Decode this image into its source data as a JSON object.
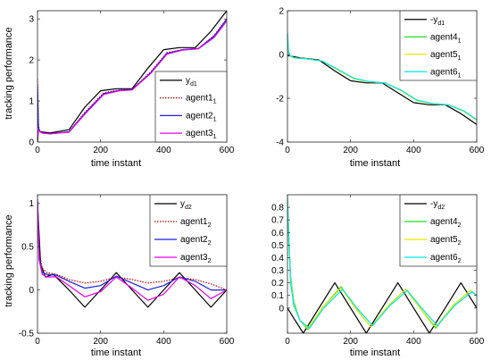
{
  "chart_data": [
    {
      "id": "tl",
      "type": "line",
      "xlabel": "time instant",
      "ylabel": "tracking performance",
      "xlim": [
        0,
        600
      ],
      "ylim": [
        0,
        3.2
      ],
      "xticks": [
        "0",
        "200",
        "400",
        "600"
      ],
      "xtick_values": [
        0,
        200,
        400,
        600
      ],
      "yticks": [
        "0",
        "1",
        "2",
        "3"
      ],
      "ytick_values": [
        0,
        1,
        2,
        3
      ],
      "legend_position": "bottom-right",
      "series": [
        {
          "name": "y",
          "sub": "d1",
          "color": "#000000",
          "dash": "solid",
          "x": [
            0,
            3,
            10,
            40,
            100,
            150,
            200,
            250,
            300,
            350,
            400,
            450,
            500,
            550,
            600
          ],
          "y": [
            0,
            0.3,
            0.25,
            0.22,
            0.3,
            0.85,
            1.25,
            1.3,
            1.3,
            1.8,
            2.25,
            2.3,
            2.3,
            2.7,
            3.2
          ]
        },
        {
          "name": "agent1",
          "sub": "1",
          "color": "#cc0000",
          "dash": "dotted",
          "x": [
            0,
            3,
            8,
            15,
            40,
            100,
            150,
            210,
            260,
            300,
            360,
            410,
            460,
            510,
            560,
            600
          ],
          "y": [
            1.55,
            0.4,
            0.25,
            0.22,
            0.2,
            0.25,
            0.72,
            1.2,
            1.27,
            1.28,
            1.72,
            2.18,
            2.25,
            2.28,
            2.6,
            3.0
          ]
        },
        {
          "name": "agent2",
          "sub": "1",
          "color": "#1f1fd6",
          "dash": "solid",
          "x": [
            0,
            3,
            8,
            15,
            40,
            100,
            150,
            210,
            260,
            300,
            360,
            410,
            460,
            510,
            560,
            600
          ],
          "y": [
            1.4,
            0.35,
            0.25,
            0.22,
            0.2,
            0.25,
            0.7,
            1.18,
            1.26,
            1.28,
            1.7,
            2.16,
            2.25,
            2.28,
            2.58,
            3.0
          ]
        },
        {
          "name": "agent3",
          "sub": "1",
          "color": "#e600e6",
          "dash": "solid",
          "x": [
            0,
            3,
            8,
            15,
            40,
            100,
            150,
            210,
            260,
            300,
            360,
            410,
            460,
            510,
            560,
            600
          ],
          "y": [
            0.1,
            0.3,
            0.25,
            0.22,
            0.2,
            0.24,
            0.68,
            1.16,
            1.25,
            1.27,
            1.68,
            2.14,
            2.24,
            2.27,
            2.55,
            2.95
          ]
        }
      ]
    },
    {
      "id": "tr",
      "type": "line",
      "xlabel": "time instant",
      "ylabel": "",
      "xlim": [
        0,
        600
      ],
      "ylim": [
        -4,
        2
      ],
      "xticks": [
        "0",
        "200",
        "400",
        "600"
      ],
      "xtick_values": [
        0,
        200,
        400,
        600
      ],
      "yticks": [
        "-4",
        "-2",
        "0",
        "2"
      ],
      "ytick_values": [
        -4,
        -2,
        0,
        2
      ],
      "legend_position": "top-right",
      "series": [
        {
          "name": "-y",
          "sub": "d1",
          "color": "#000000",
          "dash": "solid",
          "x": [
            0,
            40,
            100,
            150,
            200,
            250,
            300,
            350,
            400,
            450,
            500,
            550,
            600
          ],
          "y": [
            -0.05,
            -0.15,
            -0.25,
            -0.75,
            -1.2,
            -1.3,
            -1.3,
            -1.75,
            -2.2,
            -2.3,
            -2.3,
            -2.7,
            -3.2
          ]
        },
        {
          "name": "agent4",
          "sub": "1",
          "color": "#22dd22",
          "dash": "solid",
          "x": [
            0,
            3,
            8,
            20,
            60,
            110,
            160,
            210,
            260,
            310,
            360,
            410,
            460,
            510,
            560,
            600
          ],
          "y": [
            1.0,
            0.1,
            -0.05,
            -0.15,
            -0.2,
            -0.3,
            -0.7,
            -1.1,
            -1.25,
            -1.3,
            -1.65,
            -2.1,
            -2.25,
            -2.3,
            -2.6,
            -3.0
          ]
        },
        {
          "name": "agent5",
          "sub": "1",
          "color": "#e6e600",
          "dash": "solid",
          "x": [
            0,
            3,
            8,
            20,
            60,
            110,
            160,
            210,
            260,
            310,
            360,
            410,
            460,
            510,
            560,
            600
          ],
          "y": [
            0.8,
            0.1,
            -0.05,
            -0.15,
            -0.2,
            -0.3,
            -0.7,
            -1.1,
            -1.25,
            -1.3,
            -1.65,
            -2.1,
            -2.25,
            -2.3,
            -2.6,
            -3.0
          ]
        },
        {
          "name": "agent6",
          "sub": "1",
          "color": "#00e6e6",
          "dash": "solid",
          "x": [
            0,
            3,
            8,
            20,
            60,
            110,
            160,
            210,
            260,
            310,
            360,
            410,
            460,
            510,
            560,
            600
          ],
          "y": [
            1.0,
            0.15,
            -0.05,
            -0.15,
            -0.2,
            -0.3,
            -0.68,
            -1.08,
            -1.24,
            -1.3,
            -1.63,
            -2.08,
            -2.24,
            -2.3,
            -2.58,
            -2.98
          ]
        }
      ]
    },
    {
      "id": "bl",
      "type": "line",
      "xlabel": "time instant",
      "ylabel": "tracking performance",
      "xlim": [
        0,
        600
      ],
      "ylim": [
        -0.5,
        1.1
      ],
      "xticks": [
        "0",
        "200",
        "400",
        "600"
      ],
      "xtick_values": [
        0,
        200,
        400,
        600
      ],
      "yticks": [
        "-0.5",
        "0",
        "0.5",
        "1"
      ],
      "ytick_values": [
        -0.5,
        0,
        0.5,
        1
      ],
      "legend_position": "top-right",
      "series": [
        {
          "name": "y",
          "sub": "d2",
          "color": "#000000",
          "dash": "solid",
          "x": [
            0,
            10,
            25,
            50,
            100,
            150,
            200,
            250,
            300,
            350,
            400,
            450,
            500,
            550,
            600
          ],
          "y": [
            1.0,
            0.3,
            0.15,
            0.18,
            0.0,
            -0.2,
            0.0,
            0.2,
            0.0,
            -0.2,
            0.0,
            0.2,
            0.0,
            -0.2,
            0.0
          ]
        },
        {
          "name": "agent1",
          "sub": "2",
          "color": "#cc0000",
          "dash": "dotted",
          "x": [
            0,
            5,
            15,
            30,
            60,
            100,
            150,
            200,
            250,
            300,
            350,
            400,
            450,
            500,
            550,
            600
          ],
          "y": [
            1.05,
            0.45,
            0.25,
            0.2,
            0.18,
            0.12,
            0.08,
            0.1,
            0.15,
            0.12,
            0.08,
            0.1,
            0.14,
            0.12,
            0.07,
            0.0
          ]
        },
        {
          "name": "agent2",
          "sub": "2",
          "color": "#1f1fd6",
          "dash": "solid",
          "x": [
            0,
            5,
            15,
            30,
            60,
            100,
            150,
            200,
            250,
            300,
            350,
            400,
            450,
            500,
            550,
            600
          ],
          "y": [
            1.05,
            0.4,
            0.2,
            0.18,
            0.17,
            0.1,
            0.02,
            0.05,
            0.16,
            0.08,
            0.0,
            0.05,
            0.15,
            0.1,
            0.0,
            0.0
          ]
        },
        {
          "name": "agent3",
          "sub": "2",
          "color": "#e600e6",
          "dash": "solid",
          "x": [
            0,
            5,
            15,
            30,
            60,
            100,
            150,
            200,
            250,
            300,
            350,
            400,
            450,
            500,
            550,
            600
          ],
          "y": [
            1.0,
            0.35,
            0.18,
            0.15,
            0.15,
            0.05,
            -0.08,
            -0.02,
            0.15,
            0.02,
            -0.12,
            -0.05,
            0.15,
            0.05,
            -0.1,
            0.0
          ]
        }
      ]
    },
    {
      "id": "br",
      "type": "line",
      "xlabel": "time instant",
      "ylabel": "",
      "xlim": [
        0,
        600
      ],
      "ylim": [
        -0.2,
        0.9
      ],
      "xticks": [
        "0",
        "200",
        "400",
        "600"
      ],
      "xtick_values": [
        0,
        200,
        400,
        600
      ],
      "yticks": [
        "0",
        "0.1",
        "0.2",
        "0.3",
        "0.4",
        "0.5",
        "0.6",
        "0.7",
        "0.8"
      ],
      "ytick_values": [
        0,
        0.1,
        0.2,
        0.3,
        0.4,
        0.5,
        0.6,
        0.7,
        0.8
      ],
      "legend_position": "top-right",
      "series": [
        {
          "name": "-y",
          "sub": "d2",
          "color": "#000000",
          "dash": "solid",
          "x": [
            0,
            25,
            50,
            100,
            150,
            200,
            250,
            300,
            350,
            400,
            450,
            500,
            550,
            600
          ],
          "y": [
            0.0,
            -0.1,
            -0.2,
            0.0,
            0.2,
            0.0,
            -0.2,
            0.0,
            0.2,
            0.0,
            -0.2,
            0.0,
            0.2,
            0.0
          ]
        },
        {
          "name": "agent4",
          "sub": "2",
          "color": "#22dd22",
          "dash": "solid",
          "x": [
            0,
            4,
            10,
            20,
            40,
            65,
            110,
            170,
            215,
            265,
            320,
            375,
            420,
            470,
            525,
            580,
            600
          ],
          "y": [
            0.88,
            0.6,
            0.25,
            0.05,
            -0.1,
            -0.17,
            0.0,
            0.17,
            0.0,
            -0.15,
            0.02,
            0.15,
            0.0,
            -0.16,
            0.02,
            0.14,
            0.1
          ]
        },
        {
          "name": "agent5",
          "sub": "2",
          "color": "#e6e600",
          "dash": "solid",
          "x": [
            0,
            4,
            10,
            20,
            40,
            65,
            110,
            170,
            215,
            265,
            320,
            375,
            420,
            470,
            525,
            580,
            600
          ],
          "y": [
            0.88,
            0.58,
            0.22,
            0.03,
            -0.1,
            -0.16,
            0.0,
            0.16,
            0.0,
            -0.15,
            0.02,
            0.15,
            0.0,
            -0.15,
            0.02,
            0.14,
            0.1
          ]
        },
        {
          "name": "agent6",
          "sub": "2",
          "color": "#00e6e6",
          "dash": "solid",
          "x": [
            0,
            4,
            10,
            20,
            40,
            70,
            115,
            175,
            220,
            270,
            325,
            380,
            425,
            475,
            530,
            585,
            600
          ],
          "y": [
            0.88,
            0.55,
            0.2,
            0.02,
            -0.1,
            -0.16,
            0.0,
            0.15,
            0.0,
            -0.14,
            0.02,
            0.14,
            0.0,
            -0.14,
            0.02,
            0.13,
            0.1
          ]
        }
      ]
    }
  ]
}
